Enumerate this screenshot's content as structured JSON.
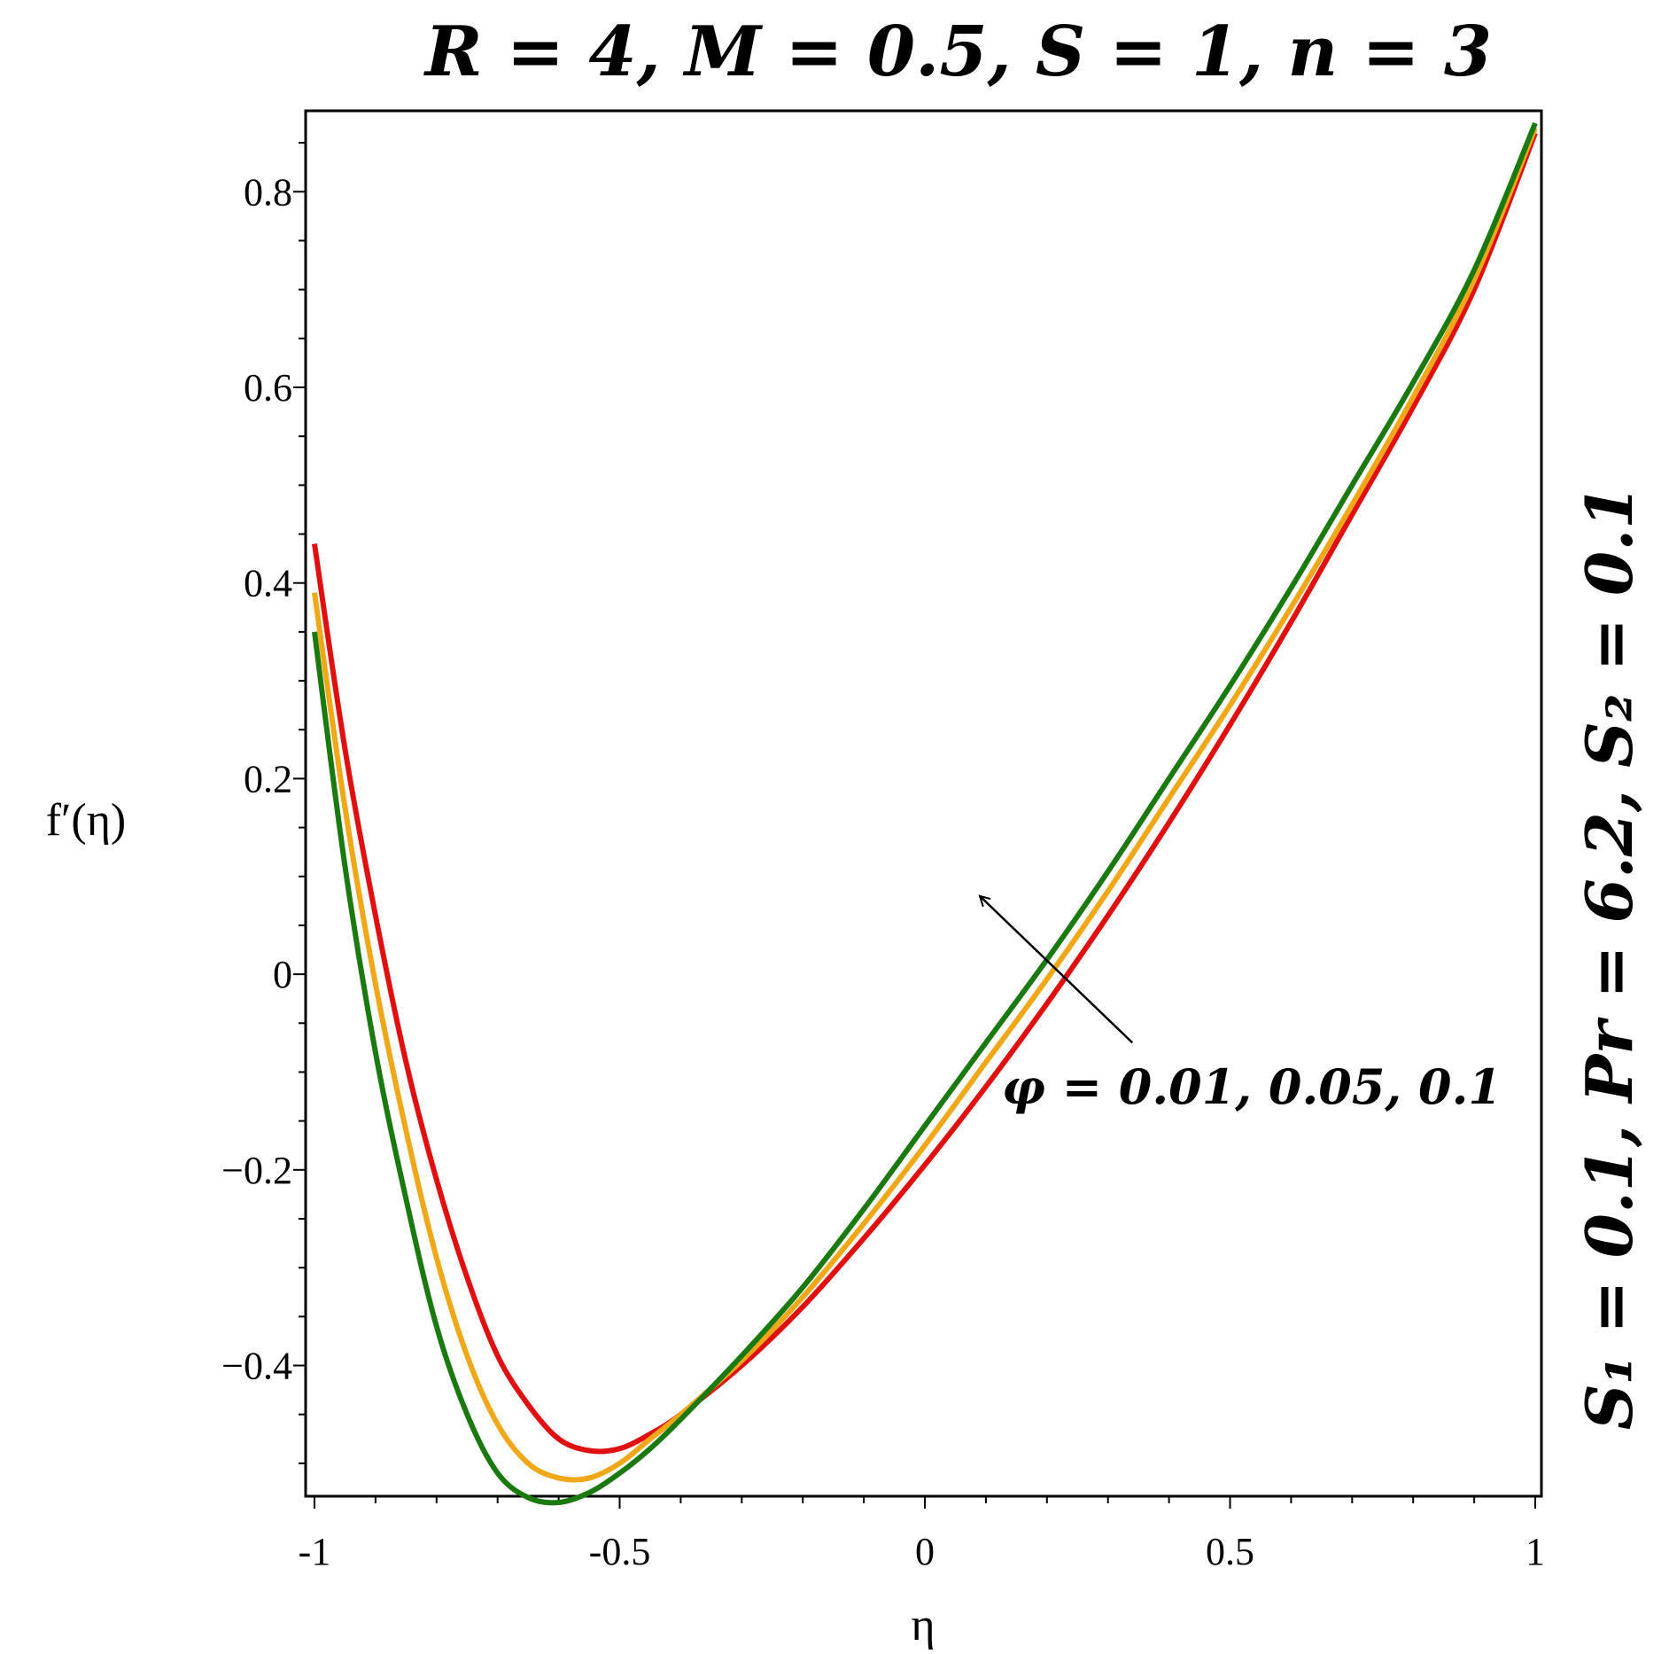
{
  "chart_data": {
    "type": "line",
    "title": "R = 4, M = 0.5, S = 1, n = 3",
    "side_title": "S₁ = 0.1, Pr = 6.2, S₂ = 0.1",
    "xlabel": "η",
    "ylabel": "f′(η)",
    "xlim": [
      -1,
      1
    ],
    "ylim": [
      -0.53,
      0.88
    ],
    "x_ticks": [
      -1,
      -0.5,
      0,
      0.5,
      1
    ],
    "x_tick_labels": [
      "-1",
      "-0.5",
      "0",
      "0.5",
      "1"
    ],
    "y_ticks": [
      -0.4,
      -0.2,
      0,
      0.2,
      0.4,
      0.6,
      0.8
    ],
    "y_tick_labels": [
      "−0.4",
      "−0.2",
      "0",
      "0.2",
      "0.4",
      "0.6",
      "0.8"
    ],
    "grid": false,
    "annotation": {
      "text": "φ = 0.01, 0.05, 0.1",
      "arrow_from": [
        0.34,
        -0.07
      ],
      "arrow_to": [
        0.09,
        0.08
      ]
    },
    "series": [
      {
        "color": "#e01010",
        "x": [
          -1.0,
          -0.95,
          -0.9,
          -0.85,
          -0.8,
          -0.75,
          -0.7,
          -0.65,
          -0.6,
          -0.55,
          -0.5,
          -0.45,
          -0.4,
          -0.3,
          -0.2,
          -0.1,
          0.0,
          0.1,
          0.2,
          0.3,
          0.4,
          0.5,
          0.6,
          0.7,
          0.8,
          0.9,
          1.0
        ],
        "values": [
          0.44,
          0.23,
          0.06,
          -0.09,
          -0.21,
          -0.31,
          -0.39,
          -0.44,
          -0.475,
          -0.487,
          -0.485,
          -0.47,
          -0.45,
          -0.4,
          -0.34,
          -0.27,
          -0.195,
          -0.115,
          -0.03,
          0.06,
          0.155,
          0.255,
          0.36,
          0.47,
          0.58,
          0.7,
          0.86
        ]
      },
      {
        "color": "#f0a818",
        "x": [
          -1.0,
          -0.95,
          -0.9,
          -0.85,
          -0.8,
          -0.75,
          -0.7,
          -0.65,
          -0.6,
          -0.55,
          -0.5,
          -0.45,
          -0.4,
          -0.3,
          -0.2,
          -0.1,
          0.0,
          0.1,
          0.2,
          0.3,
          0.4,
          0.5,
          0.6,
          0.7,
          0.8,
          0.9,
          1.0
        ],
        "values": [
          0.39,
          0.17,
          -0.01,
          -0.16,
          -0.29,
          -0.39,
          -0.46,
          -0.5,
          -0.515,
          -0.515,
          -0.5,
          -0.475,
          -0.45,
          -0.395,
          -0.33,
          -0.255,
          -0.175,
          -0.09,
          -0.005,
          0.085,
          0.18,
          0.275,
          0.375,
          0.48,
          0.59,
          0.71,
          0.865
        ]
      },
      {
        "color": "#1a7a10",
        "x": [
          -1.0,
          -0.95,
          -0.9,
          -0.85,
          -0.8,
          -0.75,
          -0.7,
          -0.65,
          -0.6,
          -0.55,
          -0.5,
          -0.45,
          -0.4,
          -0.3,
          -0.2,
          -0.1,
          0.0,
          0.1,
          0.2,
          0.3,
          0.4,
          0.5,
          0.6,
          0.7,
          0.8,
          0.9,
          1.0
        ],
        "values": [
          0.35,
          0.11,
          -0.08,
          -0.23,
          -0.36,
          -0.45,
          -0.51,
          -0.535,
          -0.54,
          -0.53,
          -0.51,
          -0.485,
          -0.455,
          -0.39,
          -0.32,
          -0.24,
          -0.155,
          -0.07,
          0.015,
          0.105,
          0.2,
          0.295,
          0.395,
          0.5,
          0.605,
          0.72,
          0.87
        ]
      }
    ]
  }
}
